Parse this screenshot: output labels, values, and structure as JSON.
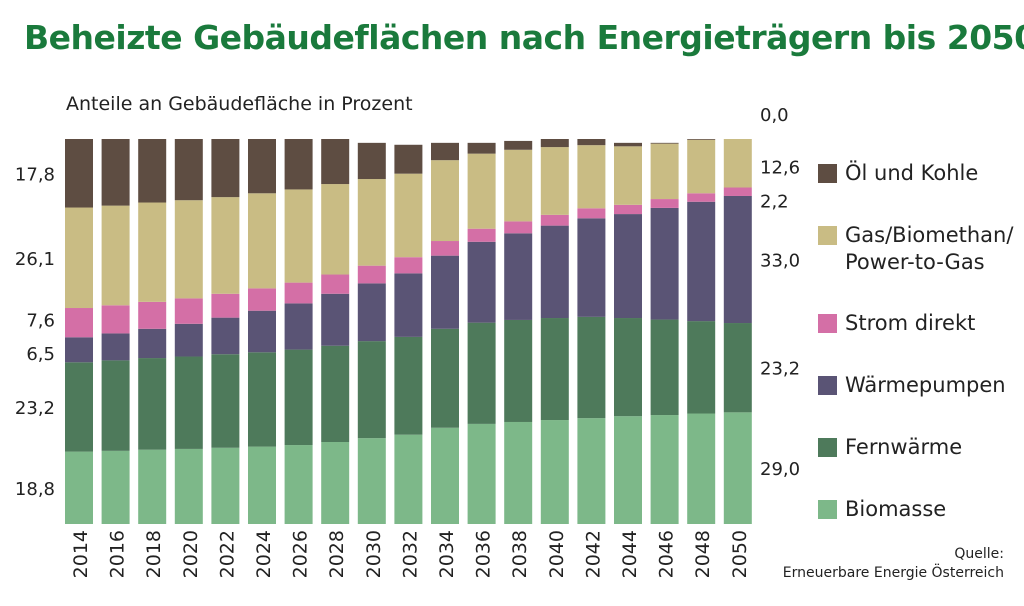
{
  "title": "Beheizte Gebäudeflächen nach Energieträgern bis 2050",
  "subtitle": "Anteile an Gebäudefläche in Prozent",
  "source_label": "Quelle:",
  "source_text": "Erneuerbare Energie Österreich",
  "chart_data": {
    "type": "bar",
    "stacked": true,
    "unit": "%",
    "categories": [
      "2014",
      "2016",
      "2018",
      "2020",
      "2022",
      "2024",
      "2026",
      "2028",
      "2030",
      "2032",
      "2034",
      "2036",
      "2038",
      "2040",
      "2042",
      "2044",
      "2046",
      "2048",
      "2050"
    ],
    "series": [
      {
        "name": "Biomasse",
        "color": "#7db889",
        "values": [
          18.8,
          19.0,
          19.3,
          19.5,
          19.8,
          20.1,
          20.5,
          21.3,
          22.3,
          23.2,
          25.0,
          26.0,
          26.5,
          27.0,
          27.5,
          28.0,
          28.3,
          28.7,
          29.0
        ]
      },
      {
        "name": "Fernwärme",
        "color": "#4e7a5b",
        "values": [
          23.2,
          23.5,
          23.8,
          24.0,
          24.3,
          24.5,
          24.8,
          25.0,
          25.2,
          25.4,
          25.7,
          26.3,
          26.5,
          26.5,
          26.3,
          25.5,
          24.8,
          24.0,
          23.2
        ]
      },
      {
        "name": "Wärmepumpen",
        "color": "#5a5475",
        "values": [
          6.5,
          7.0,
          7.6,
          8.5,
          9.5,
          10.8,
          12.0,
          13.5,
          15.0,
          16.5,
          19.0,
          21.0,
          22.5,
          24.0,
          25.6,
          27.0,
          29.0,
          31.0,
          33.0
        ]
      },
      {
        "name": "Strom direkt",
        "color": "#d46fa6",
        "values": [
          7.6,
          7.3,
          7.0,
          6.6,
          6.2,
          5.8,
          5.4,
          5.0,
          4.6,
          4.2,
          3.8,
          3.4,
          3.1,
          2.8,
          2.6,
          2.4,
          2.3,
          2.2,
          2.2
        ]
      },
      {
        "name": "Gas/Biomethan/\nPower-to-Gas",
        "color": "#c9bc84",
        "values": [
          26.1,
          25.9,
          25.8,
          25.5,
          25.1,
          24.7,
          24.2,
          23.5,
          22.5,
          21.7,
          21.0,
          19.5,
          18.6,
          17.6,
          16.4,
          15.2,
          14.4,
          13.9,
          12.6
        ]
      },
      {
        "name": "Öl und Kohle",
        "color": "#5e4d42",
        "values": [
          17.8,
          17.3,
          16.5,
          15.9,
          15.1,
          14.1,
          13.1,
          11.7,
          9.4,
          7.5,
          4.5,
          2.8,
          2.3,
          2.1,
          1.6,
          0.9,
          0.2,
          0.2,
          0.0
        ]
      }
    ],
    "left_labels": [
      "17,8",
      "26,1",
      "7,6",
      "6,5",
      "23,2",
      "18,8"
    ],
    "right_labels": [
      "0,0",
      "12,6",
      "2,2",
      "33,0",
      "23,2",
      "29,0"
    ],
    "ylim": [
      0,
      100
    ],
    "grid": false,
    "legend_position": "right"
  }
}
